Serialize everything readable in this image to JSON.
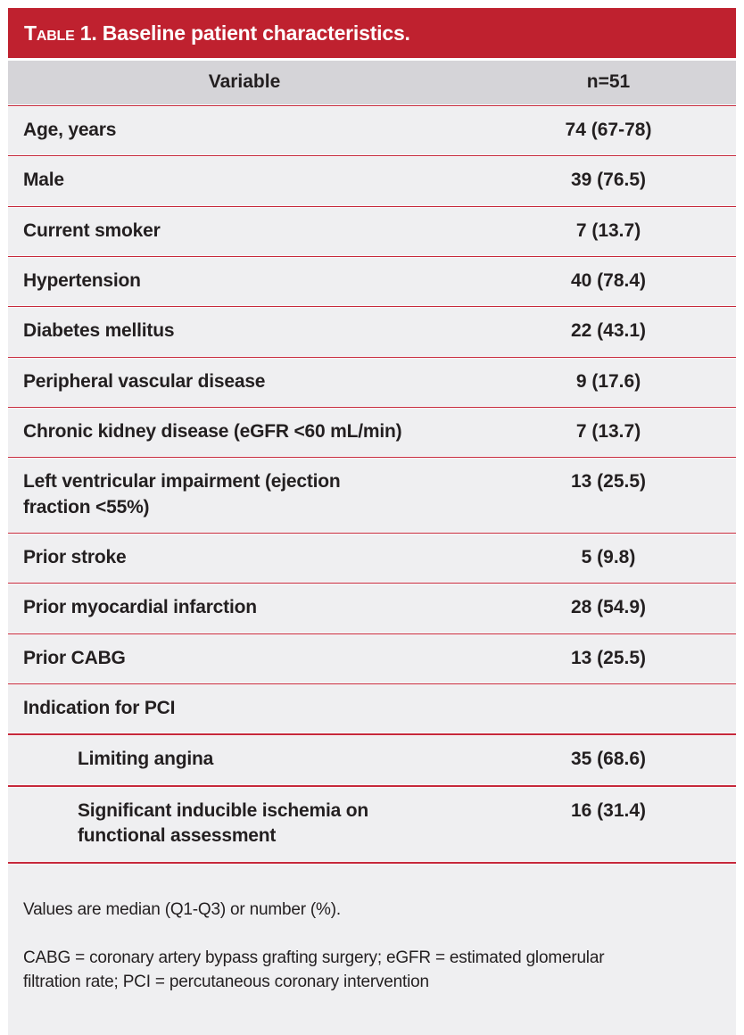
{
  "table": {
    "title_prefix": "Table 1.",
    "title": "Baseline patient characteristics.",
    "columns": {
      "variable": "Variable",
      "n": "n=51"
    },
    "rows": [
      {
        "label": "Age, years",
        "value": "74 (67-78)",
        "indent": false
      },
      {
        "label": "Male",
        "value": "39 (76.5)",
        "indent": false
      },
      {
        "label": "Current smoker",
        "value": "7 (13.7)",
        "indent": false
      },
      {
        "label": "Hypertension",
        "value": "40 (78.4)",
        "indent": false
      },
      {
        "label": "Diabetes mellitus",
        "value": "22 (43.1)",
        "indent": false
      },
      {
        "label": "Peripheral vascular disease",
        "value": "9 (17.6)",
        "indent": false
      },
      {
        "label": "Chronic kidney disease (eGFR <60 mL/min)",
        "value": "7 (13.7)",
        "indent": false
      },
      {
        "label": "Left ventricular impairment (ejection\nfraction <55%)",
        "value": "13 (25.5)",
        "indent": false
      },
      {
        "label": "Prior stroke",
        "value": "5 (9.8)",
        "indent": false
      },
      {
        "label": "Prior myocardial infarction",
        "value": "28 (54.9)",
        "indent": false
      },
      {
        "label": "Prior CABG",
        "value": "13 (25.5)",
        "indent": false
      },
      {
        "label": "Indication for PCI",
        "value": "",
        "indent": false
      },
      {
        "label": "Limiting angina",
        "value": "35 (68.6)",
        "indent": true
      },
      {
        "label": "Significant inducible ischemia on\nfunctional assessment",
        "value": "16 (31.4)",
        "indent": true
      }
    ],
    "footnotes": {
      "values_note": "Values are median (Q1-Q3) or number (%).",
      "abbreviations": "CABG = coronary artery bypass grafting surgery; eGFR = estimated glomerular\nfiltration rate; PCI = percutaneous coronary intervention"
    },
    "colors": {
      "accent_red": "#bf212f",
      "header_gray": "#d5d4d8",
      "row_background": "#efeff1"
    }
  }
}
